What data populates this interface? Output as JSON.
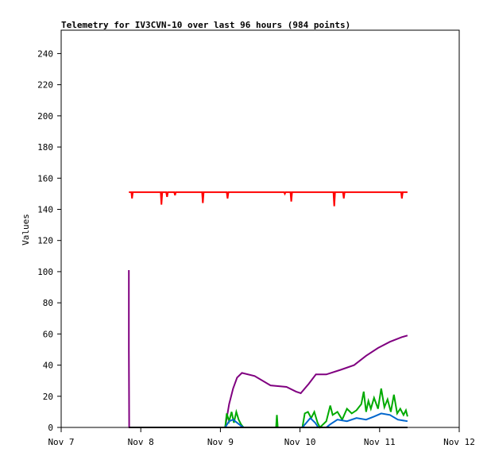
{
  "chart_data": {
    "type": "line",
    "title": "Telemetry for IV3CVN-10 over last 96 hours (984 points)",
    "xlabel": "",
    "ylabel": "Values",
    "xlim": [
      "Nov 7 00:00",
      "Nov 12 00:00"
    ],
    "ylim": [
      0,
      255
    ],
    "x_ticks": [
      "Nov 7",
      "Nov 8",
      "Nov 9",
      "Nov 10",
      "Nov 11",
      "Nov 12"
    ],
    "y_ticks": [
      0,
      20,
      40,
      60,
      80,
      100,
      120,
      140,
      160,
      180,
      200,
      220,
      240
    ],
    "grid": false,
    "legend": "none",
    "series": [
      {
        "color": "#ff0000",
        "points": [
          [
            "Nov 7 20:24",
            151
          ],
          [
            "Nov 7 21:10",
            151
          ],
          [
            "Nov 7 21:22",
            147
          ],
          [
            "Nov 7 21:35",
            151
          ],
          [
            "Nov 8 06:00",
            151
          ],
          [
            "Nov 8 06:14",
            143
          ],
          [
            "Nov 8 06:28",
            151
          ],
          [
            "Nov 8 07:40",
            151
          ],
          [
            "Nov 8 07:55",
            148
          ],
          [
            "Nov 8 08:10",
            151
          ],
          [
            "Nov 8 10:05",
            151
          ],
          [
            "Nov 8 10:19",
            149
          ],
          [
            "Nov 8 10:34",
            151
          ],
          [
            "Nov 8 18:30",
            151
          ],
          [
            "Nov 8 18:43",
            144
          ],
          [
            "Nov 8 18:57",
            151
          ],
          [
            "Nov 9 01:55",
            151
          ],
          [
            "Nov 9 02:10",
            147
          ],
          [
            "Nov 9 02:25",
            151
          ],
          [
            "Nov 9 19:12",
            151
          ],
          [
            "Nov 9 19:26",
            150
          ],
          [
            "Nov 9 19:40",
            151
          ],
          [
            "Nov 9 21:08",
            151
          ],
          [
            "Nov 9 21:22",
            145
          ],
          [
            "Nov 9 21:36",
            151
          ],
          [
            "Nov 10 10:05",
            151
          ],
          [
            "Nov 10 10:19",
            142
          ],
          [
            "Nov 10 10:34",
            151
          ],
          [
            "Nov 10 12:58",
            151
          ],
          [
            "Nov 10 13:12",
            147
          ],
          [
            "Nov 10 13:26",
            151
          ],
          [
            "Nov 11 06:29",
            151
          ],
          [
            "Nov 11 06:43",
            147
          ],
          [
            "Nov 11 06:58",
            151
          ],
          [
            "Nov 11 08:24",
            151
          ]
        ]
      },
      {
        "color": "#800080",
        "points": [
          [
            "Nov 7 20:24",
            101
          ],
          [
            "Nov 7 20:24",
            50
          ],
          [
            "Nov 7 20:30",
            0
          ],
          [
            "Nov 9 01:26",
            0
          ],
          [
            "Nov 9 02:38",
            15
          ],
          [
            "Nov 9 03:50",
            25
          ],
          [
            "Nov 9 05:02",
            32
          ],
          [
            "Nov 9 06:29",
            35
          ],
          [
            "Nov 9 10:19",
            33
          ],
          [
            "Nov 9 15:07",
            27
          ],
          [
            "Nov 9 19:55",
            26
          ],
          [
            "Nov 9 22:48",
            23
          ],
          [
            "Nov 10 00:14",
            22
          ],
          [
            "Nov 10 02:38",
            28
          ],
          [
            "Nov 10 04:48",
            34
          ],
          [
            "Nov 10 07:55",
            34
          ],
          [
            "Nov 10 12:14",
            37
          ],
          [
            "Nov 10 16:19",
            40
          ],
          [
            "Nov 10 19:55",
            46
          ],
          [
            "Nov 10 23:31",
            51
          ],
          [
            "Nov 11 03:07",
            55
          ],
          [
            "Nov 11 06:43",
            58
          ],
          [
            "Nov 11 08:24",
            59
          ]
        ]
      },
      {
        "color": "#00aa00",
        "points": [
          [
            "Nov 9 01:26",
            0
          ],
          [
            "Nov 9 01:55",
            9
          ],
          [
            "Nov 9 02:38",
            4
          ],
          [
            "Nov 9 03:22",
            10
          ],
          [
            "Nov 9 04:05",
            3
          ],
          [
            "Nov 9 04:48",
            10
          ],
          [
            "Nov 9 05:31",
            5
          ],
          [
            "Nov 9 06:14",
            2
          ],
          [
            "Nov 9 06:58",
            0
          ],
          [
            "Nov 9 16:48",
            0
          ],
          [
            "Nov 9 17:02",
            8
          ],
          [
            "Nov 9 17:17",
            0
          ],
          [
            "Nov 10 00:43",
            0
          ],
          [
            "Nov 10 01:26",
            9
          ],
          [
            "Nov 10 02:24",
            10
          ],
          [
            "Nov 10 03:22",
            6
          ],
          [
            "Nov 10 04:19",
            10
          ],
          [
            "Nov 10 05:17",
            3
          ],
          [
            "Nov 10 06:00",
            0
          ],
          [
            "Nov 10 07:55",
            4
          ],
          [
            "Nov 10 09:07",
            14
          ],
          [
            "Nov 10 09:50",
            8
          ],
          [
            "Nov 10 11:17",
            10
          ],
          [
            "Nov 10 12:43",
            5
          ],
          [
            "Nov 10 14:10",
            12
          ],
          [
            "Nov 10 15:36",
            9
          ],
          [
            "Nov 10 17:02",
            11
          ],
          [
            "Nov 10 18:29",
            15
          ],
          [
            "Nov 10 19:12",
            23
          ],
          [
            "Nov 10 19:55",
            10
          ],
          [
            "Nov 10 20:38",
            17
          ],
          [
            "Nov 10 21:22",
            12
          ],
          [
            "Nov 10 22:19",
            19
          ],
          [
            "Nov 10 23:31",
            12
          ],
          [
            "Nov 11 00:29",
            25
          ],
          [
            "Nov 11 01:26",
            13
          ],
          [
            "Nov 11 02:24",
            18
          ],
          [
            "Nov 11 03:22",
            10
          ],
          [
            "Nov 11 04:19",
            21
          ],
          [
            "Nov 11 05:17",
            9
          ],
          [
            "Nov 11 06:14",
            12
          ],
          [
            "Nov 11 07:12",
            8
          ],
          [
            "Nov 11 07:55",
            11
          ],
          [
            "Nov 11 08:24",
            7
          ]
        ]
      },
      {
        "color": "#0066cc",
        "points": [
          [
            "Nov 9 01:26",
            0
          ],
          [
            "Nov 9 02:38",
            4
          ],
          [
            "Nov 9 03:50",
            5
          ],
          [
            "Nov 9 05:02",
            3
          ],
          [
            "Nov 9 06:14",
            1
          ],
          [
            "Nov 9 06:58",
            0
          ],
          [
            "Nov 10 00:43",
            0
          ],
          [
            "Nov 10 01:55",
            3
          ],
          [
            "Nov 10 03:07",
            6
          ],
          [
            "Nov 10 04:34",
            3
          ],
          [
            "Nov 10 05:31",
            0
          ],
          [
            "Nov 10 07:55",
            0
          ],
          [
            "Nov 10 09:07",
            2
          ],
          [
            "Nov 10 11:17",
            5
          ],
          [
            "Nov 10 14:10",
            4
          ],
          [
            "Nov 10 17:02",
            6
          ],
          [
            "Nov 10 19:55",
            5
          ],
          [
            "Nov 10 22:19",
            7
          ],
          [
            "Nov 11 00:29",
            9
          ],
          [
            "Nov 11 03:07",
            8
          ],
          [
            "Nov 11 05:31",
            5
          ],
          [
            "Nov 11 08:24",
            4
          ]
        ]
      },
      {
        "color": "#000000",
        "points": [
          [
            "Nov 7 20:24",
            0
          ],
          [
            "Nov 11 08:24",
            0
          ]
        ]
      }
    ]
  }
}
